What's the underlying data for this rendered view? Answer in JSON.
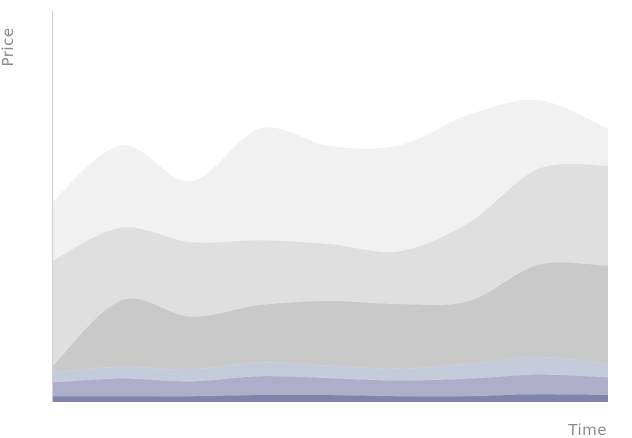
{
  "chart_data": {
    "type": "area",
    "stacked": true,
    "smooth": true,
    "title": "",
    "xlabel": "Time",
    "ylabel": "Price",
    "x": [
      0,
      1,
      2,
      3,
      4,
      5,
      6,
      7,
      8
    ],
    "xlim": [
      0,
      8
    ],
    "ylim": [
      0,
      100
    ],
    "grid": false,
    "legend": "none",
    "series": [
      {
        "color": "#7f85aa",
        "values": [
          1.5,
          1.5,
          1.5,
          1.8,
          1.8,
          1.5,
          1.5,
          2.0,
          1.8
        ]
      },
      {
        "color": "#afaeca",
        "values": [
          3.5,
          4.5,
          3.8,
          4.8,
          4.3,
          4.0,
          4.5,
          5.0,
          4.5
        ]
      },
      {
        "color": "#c4ccdc",
        "values": [
          2.5,
          3.0,
          3.0,
          3.5,
          3.2,
          3.0,
          3.8,
          4.5,
          3.5
        ]
      },
      {
        "color": "#c9c9c9",
        "values": [
          1.5,
          17.0,
          13.5,
          14.7,
          16.5,
          16.5,
          16.0,
          23.5,
          25.0
        ]
      },
      {
        "color": "#dfdfdf",
        "values": [
          27.0,
          18.5,
          19.0,
          16.5,
          14.5,
          13.5,
          20.0,
          24.5,
          25.5
        ]
      },
      {
        "color": "#f1f1f1",
        "values": [
          15.0,
          21.0,
          15.5,
          28.5,
          25.0,
          27.0,
          27.5,
          17.5,
          9.5
        ]
      }
    ]
  }
}
